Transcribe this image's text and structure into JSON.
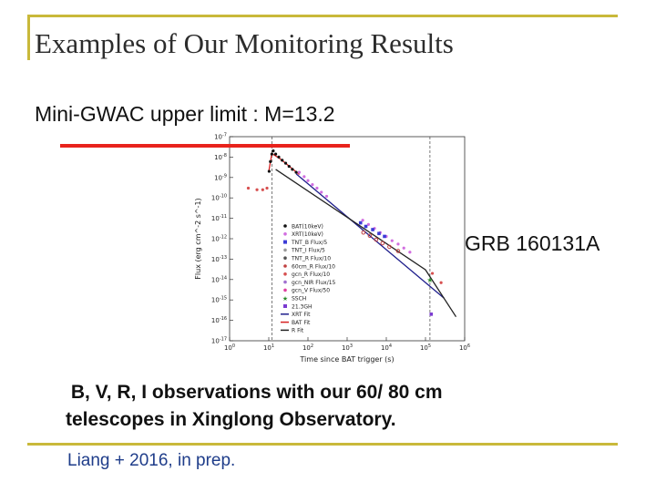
{
  "slide": {
    "title": "Examples of Our Monitoring Results",
    "subtitle": "Mini-GWAC upper limit : M=13.2",
    "grb_label": "GRB 160131A",
    "observations": " B, V, R, I observations with our 60/ 80 cm\ntelescopes in Xinglong Observatory.",
    "credit": "Liang + 2016, in prep."
  },
  "colors": {
    "frame": "#c9b93a",
    "limit_line": "#e8231c",
    "credit_text": "#1f3d8a"
  },
  "chart_data": {
    "type": "scatter",
    "xlabel": "Time since BAT trigger (s)",
    "ylabel": "Flux (erg cm^-2 s^-1)",
    "x_log": true,
    "y_log": true,
    "xlim": [
      1,
      1000000
    ],
    "ylim": [
      1e-17,
      1e-07
    ],
    "x_ticks": [
      "10^0",
      "10^1",
      "10^2",
      "10^3",
      "10^4",
      "10^5",
      "10^6"
    ],
    "y_ticks": [
      "10^-7",
      "10^-8",
      "10^-9",
      "10^-10",
      "10^-11",
      "10^-12",
      "10^-13",
      "10^-14",
      "10^-15",
      "10^-16",
      "10^-17"
    ],
    "vertical_lines_s": [
      12,
      130000
    ],
    "legend_position": "lower-left",
    "series": [
      {
        "name": "BAT(10keV)",
        "color": "#111111",
        "marker": "dot",
        "points": [
          [
            10.2,
            2e-09
          ],
          [
            11,
            6e-09
          ],
          [
            12,
            1.4e-08
          ],
          [
            13,
            2e-08
          ],
          [
            15,
            1.4e-08
          ],
          [
            18,
            1e-08
          ],
          [
            22,
            7e-09
          ],
          [
            27,
            5e-09
          ],
          [
            33,
            3.5e-09
          ],
          [
            40,
            2.5e-09
          ],
          [
            50,
            1.8e-09
          ]
        ]
      },
      {
        "name": "XRT(10keV)",
        "color": "#d26ee0",
        "marker": "dot",
        "points": [
          [
            60,
            1.8e-09
          ],
          [
            80,
            1.1e-09
          ],
          [
            100,
            7e-10
          ],
          [
            130,
            4.5e-10
          ],
          [
            170,
            3e-10
          ],
          [
            220,
            1.9e-10
          ],
          [
            300,
            1.2e-10
          ],
          [
            2500,
            8e-12
          ],
          [
            3500,
            5e-12
          ],
          [
            5000,
            3.2e-12
          ],
          [
            7000,
            2e-12
          ],
          [
            10000,
            1.3e-12
          ],
          [
            14000,
            8e-13
          ],
          [
            20000,
            5.5e-13
          ],
          [
            28000,
            3.5e-13
          ],
          [
            40000,
            2.2e-13
          ]
        ]
      },
      {
        "name": "TNT_B Flux/5",
        "color": "#3b3bd6",
        "marker": "square",
        "points": [
          [
            2200,
            6e-12
          ],
          [
            3000,
            4e-12
          ],
          [
            4500,
            2.8e-12
          ],
          [
            6500,
            1.8e-12
          ],
          [
            9000,
            1.3e-12
          ]
        ]
      },
      {
        "name": "TNT_I Flux/5",
        "color": "#999999",
        "marker": "dot",
        "points": []
      },
      {
        "name": "TNT_R Flux/10",
        "color": "#555555",
        "marker": "dot",
        "points": []
      },
      {
        "name": "60cm_R Flux/10",
        "color": "#c04040",
        "marker": "circle",
        "points": [
          [
            2600,
            2e-12
          ],
          [
            3800,
            1.4e-12
          ],
          [
            5500,
            9e-13
          ],
          [
            8000,
            6e-13
          ],
          [
            12000,
            4e-13
          ],
          [
            20000,
            2.5e-13
          ]
        ]
      },
      {
        "name": "gcn_R Flux/10",
        "color": "#d75050",
        "marker": "dot",
        "points": [
          [
            3,
            3e-10
          ],
          [
            5,
            2.5e-10
          ],
          [
            7,
            2.5e-10
          ],
          [
            9,
            3e-10
          ],
          [
            150000,
            2e-14
          ],
          [
            250000,
            7e-15
          ]
        ]
      },
      {
        "name": "gcn_NIR Flux/15",
        "color": "#a070d0",
        "marker": "dot",
        "points": []
      },
      {
        "name": "gcn_V Flux/50",
        "color": "#e040a0",
        "marker": "dot",
        "points": []
      },
      {
        "name": "SSCH",
        "color": "#2a8a2a",
        "marker": "star",
        "points": [
          [
            130000,
            1e-14
          ]
        ]
      },
      {
        "name": "21.3GH",
        "color": "#7a3ad0",
        "marker": "square",
        "points": [
          [
            140000,
            2e-16
          ]
        ]
      }
    ],
    "fits": [
      {
        "name": "XRT Fit",
        "color": "#1f1f8c",
        "points": [
          [
            50,
            1.5e-09
          ],
          [
            300000,
            1.2e-15
          ]
        ]
      },
      {
        "name": "BAT Fit",
        "color": "#d62020",
        "points": [
          [
            10,
            2e-09
          ],
          [
            12,
            1.5e-08
          ],
          [
            20,
            8e-09
          ],
          [
            60,
            1.4e-09
          ]
        ]
      },
      {
        "name": "R Fit",
        "color": "#222222",
        "points": [
          [
            15,
            2.5e-09
          ],
          [
            100000,
            3e-14
          ],
          [
            600000,
            1.5e-16
          ]
        ]
      }
    ]
  }
}
